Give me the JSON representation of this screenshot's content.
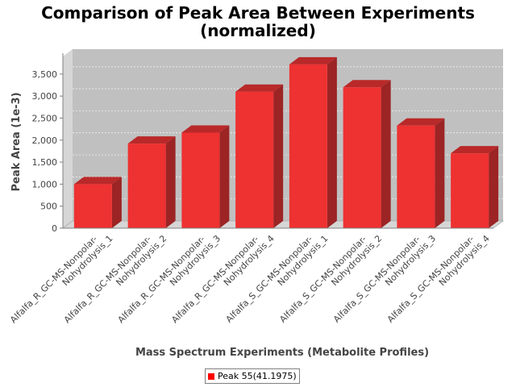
{
  "chart_data": {
    "type": "bar",
    "title": "Comparison of Peak Area Between Experiments",
    "subtitle": "(normalized)",
    "xlabel": "Mass Spectrum Experiments (Metabolite Profiles)",
    "ylabel": "Peak Area (1e-3)",
    "categories": [
      [
        "Alfalfa_R_GC-MS-Nonpolar-",
        "Nohydrolysis_1"
      ],
      [
        "Alfalfa_R_GC-MS-Nonpolar-",
        "Nohydrolysis_2"
      ],
      [
        "Alfalfa_R_GC-MS-Nonpolar-",
        "Nohydrolysis_3"
      ],
      [
        "Alfalfa_R_GC-MS-Nonpolar-",
        "Nohydrolysis_4"
      ],
      [
        "Alfalfa_S_GC-MS-Nonpolar-",
        "Nohydrolysis_1"
      ],
      [
        "Alfalfa_S_GC-MS-Nonpolar-",
        "Nohydrolysis_2"
      ],
      [
        "Alfalfa_S_GC-MS-Nonpolar-",
        "Nohydrolysis_3"
      ],
      [
        "Alfalfa_S_GC-MS-Nonpolar-",
        "Nohydrolysis_4"
      ]
    ],
    "series": [
      {
        "name": "Peak 55(41.1975)",
        "values": [
          1000,
          1920,
          2170,
          3100,
          3720,
          3200,
          2330,
          1700
        ]
      }
    ],
    "ylim": [
      0,
      3900
    ],
    "yticks": [
      0,
      500,
      1000,
      1500,
      2000,
      2500,
      3000,
      3500
    ],
    "ytick_labels": [
      "0",
      "500",
      "1,000",
      "1,500",
      "2,000",
      "2,500",
      "3,000",
      "3,500"
    ],
    "grid": true,
    "legend_position": "bottom",
    "colors": {
      "bar_front": "#ee3131",
      "bar_top": "#b92929",
      "bar_side": "#9c2424",
      "plot_bg": "#c0c0c0",
      "plot_wall": "#d6d6d6",
      "legend_swatch": "#ff0000"
    }
  }
}
